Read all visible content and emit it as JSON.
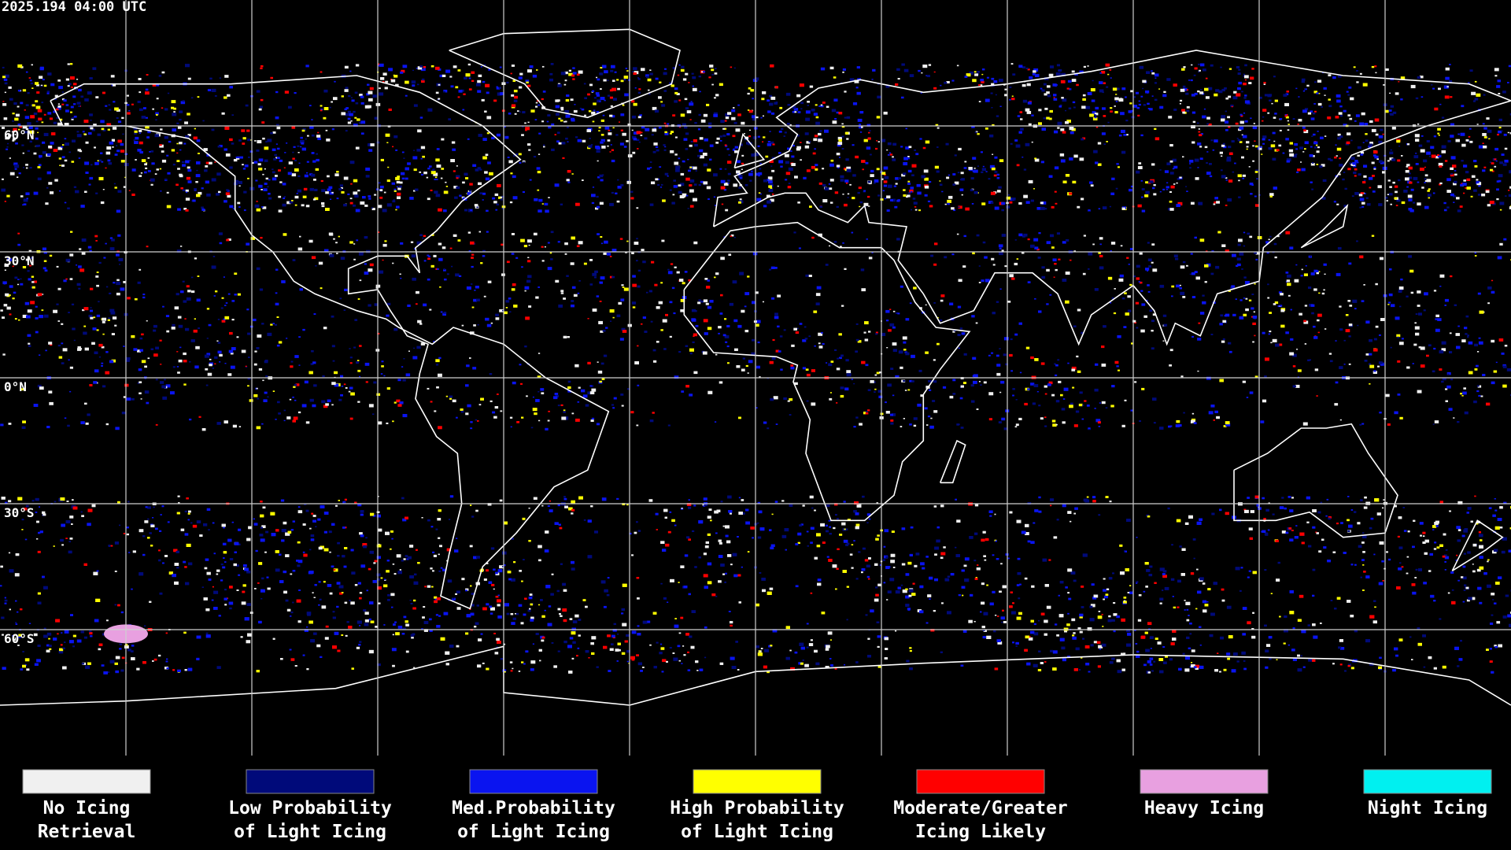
{
  "header": {
    "timestamp": "2025.194 04:00 UTC"
  },
  "lat_labels": [
    "60°N",
    "30°N",
    "0°N",
    "30°S",
    "60°S"
  ],
  "legend": [
    {
      "lines": [
        "No Icing",
        "Retrieval"
      ],
      "color": "#f0f0f0"
    },
    {
      "lines": [
        "Low Probability",
        "of Light Icing"
      ],
      "color": "#000a7a"
    },
    {
      "lines": [
        "Med.Probability",
        "of Light Icing"
      ],
      "color": "#0a14f0"
    },
    {
      "lines": [
        "High Probability",
        "of Light Icing"
      ],
      "color": "#ffff00"
    },
    {
      "lines": [
        "Moderate/Greater",
        "Icing Likely"
      ],
      "color": "#ff0000"
    },
    {
      "lines": [
        "Heavy Icing"
      ],
      "color": "#e8a0e0"
    },
    {
      "lines": [
        "Night Icing"
      ],
      "color": "#00f0f0"
    }
  ]
}
